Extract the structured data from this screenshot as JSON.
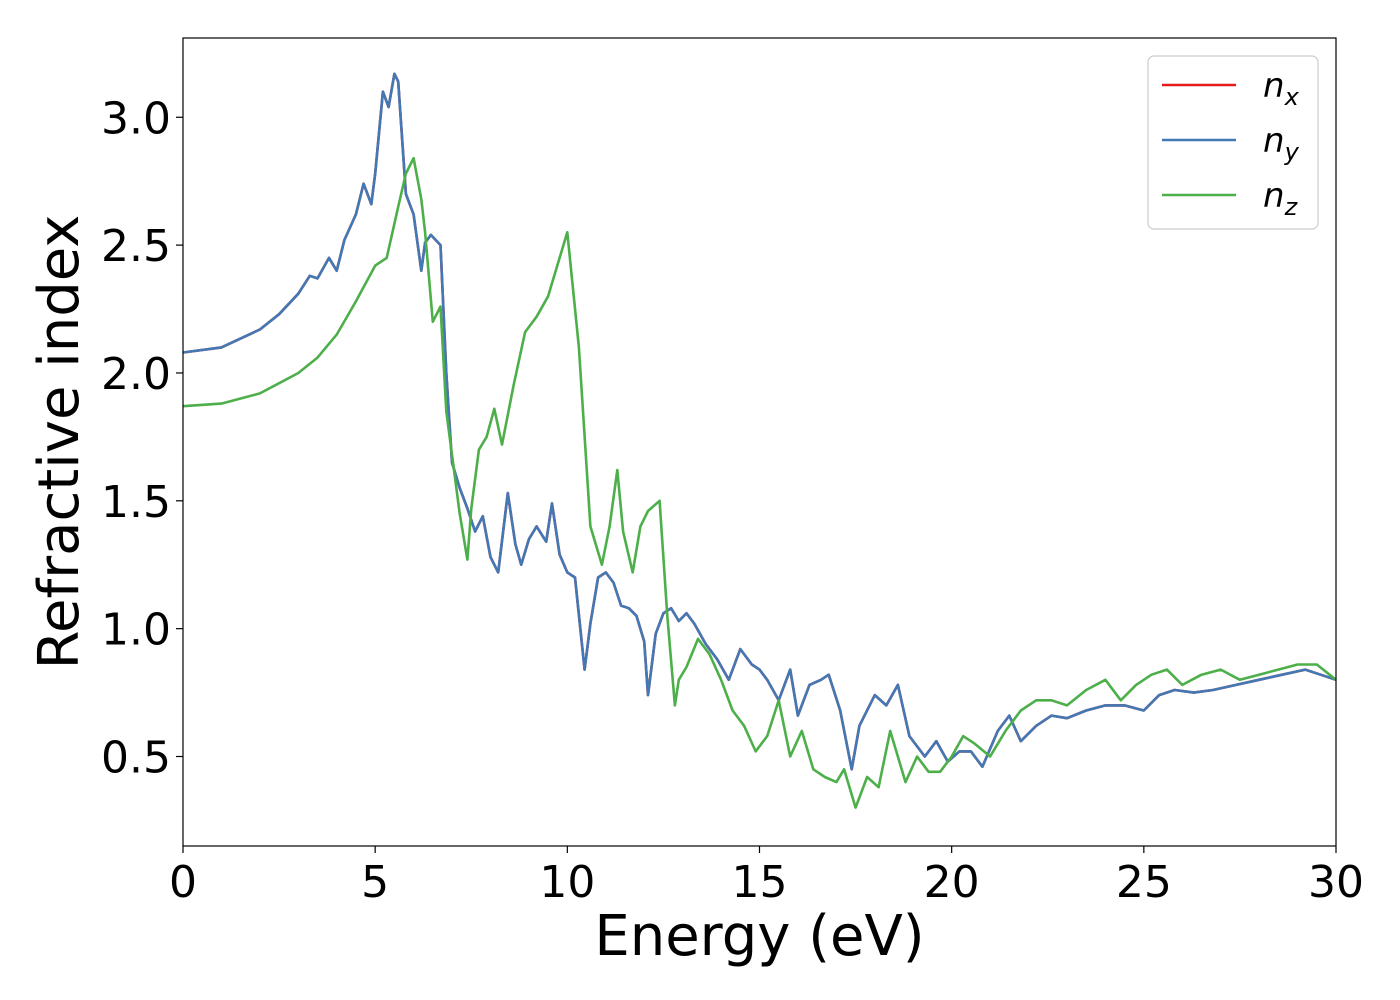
{
  "chart_data": {
    "type": "line",
    "xlabel": "Energy (eV)",
    "ylabel": "Refractive index",
    "xlim": [
      0,
      30
    ],
    "ylim": [
      0.15,
      3.31
    ],
    "xticks": [
      0,
      5,
      10,
      15,
      20,
      25,
      30
    ],
    "xtick_labels": [
      "0",
      "5",
      "10",
      "15",
      "20",
      "25",
      "30"
    ],
    "yticks": [
      0.5,
      1.0,
      1.5,
      2.0,
      2.5,
      3.0
    ],
    "ytick_labels": [
      "0.5",
      "1.0",
      "1.5",
      "2.0",
      "2.5",
      "3.0"
    ],
    "grid": false,
    "legend_position": "top-right",
    "series": [
      {
        "name": "n",
        "subscript": "x",
        "color": "#e41a1c",
        "x": [
          0,
          1,
          2,
          2.5,
          3,
          3.3,
          3.5,
          3.8,
          4.0,
          4.2,
          4.5,
          4.7,
          4.9,
          5.0,
          5.2,
          5.35,
          5.5,
          5.6,
          5.8,
          6.0,
          6.2,
          6.3,
          6.45,
          6.7,
          6.85,
          7.0,
          7.2,
          7.4,
          7.6,
          7.8,
          8.0,
          8.2,
          8.45,
          8.65,
          8.8,
          9.0,
          9.2,
          9.45,
          9.6,
          9.8,
          10.0,
          10.2,
          10.45,
          10.6,
          10.8,
          11.0,
          11.2,
          11.4,
          11.6,
          11.8,
          12.0,
          12.1,
          12.3,
          12.5,
          12.7,
          12.9,
          13.1,
          13.3,
          13.6,
          13.9,
          14.2,
          14.5,
          14.8,
          15.0,
          15.2,
          15.5,
          15.8,
          16.0,
          16.3,
          16.6,
          16.8,
          17.1,
          17.4,
          17.6,
          18.0,
          18.3,
          18.6,
          18.9,
          19.3,
          19.6,
          19.9,
          20.2,
          20.5,
          20.8,
          21.2,
          21.5,
          21.8,
          22.2,
          22.6,
          23.0,
          23.5,
          24.0,
          24.5,
          25.0,
          25.4,
          25.8,
          26.3,
          26.8,
          27.4,
          28.0,
          28.6,
          29.2,
          29.6,
          30.0
        ],
        "y": [
          2.08,
          2.1,
          2.17,
          2.23,
          2.31,
          2.38,
          2.37,
          2.45,
          2.4,
          2.52,
          2.62,
          2.74,
          2.66,
          2.78,
          3.1,
          3.04,
          3.17,
          3.14,
          2.7,
          2.62,
          2.4,
          2.51,
          2.54,
          2.5,
          2.0,
          1.65,
          1.55,
          1.47,
          1.38,
          1.44,
          1.28,
          1.22,
          1.53,
          1.33,
          1.25,
          1.35,
          1.4,
          1.34,
          1.49,
          1.29,
          1.22,
          1.2,
          0.84,
          1.02,
          1.2,
          1.22,
          1.18,
          1.09,
          1.08,
          1.05,
          0.95,
          0.74,
          0.98,
          1.06,
          1.08,
          1.03,
          1.06,
          1.02,
          0.94,
          0.88,
          0.8,
          0.92,
          0.86,
          0.84,
          0.8,
          0.72,
          0.84,
          0.66,
          0.78,
          0.8,
          0.82,
          0.68,
          0.45,
          0.62,
          0.74,
          0.7,
          0.78,
          0.58,
          0.5,
          0.56,
          0.48,
          0.52,
          0.52,
          0.46,
          0.6,
          0.66,
          0.56,
          0.62,
          0.66,
          0.65,
          0.68,
          0.7,
          0.7,
          0.68,
          0.74,
          0.76,
          0.75,
          0.76,
          0.78,
          0.8,
          0.82,
          0.84,
          0.82,
          0.8
        ]
      },
      {
        "name": "n",
        "subscript": "y",
        "color": "#4278b4",
        "x": [
          0,
          1,
          2,
          2.5,
          3,
          3.3,
          3.5,
          3.8,
          4.0,
          4.2,
          4.5,
          4.7,
          4.9,
          5.0,
          5.2,
          5.35,
          5.5,
          5.6,
          5.8,
          6.0,
          6.2,
          6.3,
          6.45,
          6.7,
          6.85,
          7.0,
          7.2,
          7.4,
          7.6,
          7.8,
          8.0,
          8.2,
          8.45,
          8.65,
          8.8,
          9.0,
          9.2,
          9.45,
          9.6,
          9.8,
          10.0,
          10.2,
          10.45,
          10.6,
          10.8,
          11.0,
          11.2,
          11.4,
          11.6,
          11.8,
          12.0,
          12.1,
          12.3,
          12.5,
          12.7,
          12.9,
          13.1,
          13.3,
          13.6,
          13.9,
          14.2,
          14.5,
          14.8,
          15.0,
          15.2,
          15.5,
          15.8,
          16.0,
          16.3,
          16.6,
          16.8,
          17.1,
          17.4,
          17.6,
          18.0,
          18.3,
          18.6,
          18.9,
          19.3,
          19.6,
          19.9,
          20.2,
          20.5,
          20.8,
          21.2,
          21.5,
          21.8,
          22.2,
          22.6,
          23.0,
          23.5,
          24.0,
          24.5,
          25.0,
          25.4,
          25.8,
          26.3,
          26.8,
          27.4,
          28.0,
          28.6,
          29.2,
          29.6,
          30.0
        ],
        "y": [
          2.08,
          2.1,
          2.17,
          2.23,
          2.31,
          2.38,
          2.37,
          2.45,
          2.4,
          2.52,
          2.62,
          2.74,
          2.66,
          2.78,
          3.1,
          3.04,
          3.17,
          3.14,
          2.7,
          2.62,
          2.4,
          2.51,
          2.54,
          2.5,
          2.0,
          1.65,
          1.55,
          1.47,
          1.38,
          1.44,
          1.28,
          1.22,
          1.53,
          1.33,
          1.25,
          1.35,
          1.4,
          1.34,
          1.49,
          1.29,
          1.22,
          1.2,
          0.84,
          1.02,
          1.2,
          1.22,
          1.18,
          1.09,
          1.08,
          1.05,
          0.95,
          0.74,
          0.98,
          1.06,
          1.08,
          1.03,
          1.06,
          1.02,
          0.94,
          0.88,
          0.8,
          0.92,
          0.86,
          0.84,
          0.8,
          0.72,
          0.84,
          0.66,
          0.78,
          0.8,
          0.82,
          0.68,
          0.45,
          0.62,
          0.74,
          0.7,
          0.78,
          0.58,
          0.5,
          0.56,
          0.48,
          0.52,
          0.52,
          0.46,
          0.6,
          0.66,
          0.56,
          0.62,
          0.66,
          0.65,
          0.68,
          0.7,
          0.7,
          0.68,
          0.74,
          0.76,
          0.75,
          0.76,
          0.78,
          0.8,
          0.82,
          0.84,
          0.82,
          0.8
        ]
      },
      {
        "name": "n",
        "subscript": "z",
        "color": "#4daf4a",
        "x": [
          0,
          1,
          2,
          3,
          3.5,
          4.0,
          4.5,
          5.0,
          5.3,
          5.6,
          5.8,
          6.0,
          6.2,
          6.3,
          6.5,
          6.7,
          6.85,
          7.0,
          7.2,
          7.4,
          7.5,
          7.7,
          7.9,
          8.1,
          8.3,
          8.6,
          8.9,
          9.2,
          9.5,
          9.8,
          10.0,
          10.3,
          10.6,
          10.9,
          11.1,
          11.3,
          11.45,
          11.7,
          11.9,
          12.1,
          12.4,
          12.6,
          12.8,
          12.9,
          13.1,
          13.4,
          13.7,
          14.0,
          14.3,
          14.6,
          14.9,
          15.2,
          15.5,
          15.8,
          16.1,
          16.4,
          16.7,
          17.0,
          17.2,
          17.5,
          17.8,
          18.1,
          18.4,
          18.8,
          19.1,
          19.4,
          19.7,
          20.0,
          20.3,
          20.6,
          21.0,
          21.4,
          21.8,
          22.2,
          22.6,
          23.0,
          23.5,
          24.0,
          24.4,
          24.8,
          25.2,
          25.6,
          26.0,
          26.5,
          27.0,
          27.5,
          28.0,
          28.5,
          29.0,
          29.5,
          30.0
        ],
        "y": [
          1.87,
          1.88,
          1.92,
          2.0,
          2.06,
          2.15,
          2.28,
          2.42,
          2.45,
          2.65,
          2.78,
          2.84,
          2.68,
          2.55,
          2.2,
          2.26,
          1.85,
          1.68,
          1.45,
          1.27,
          1.47,
          1.7,
          1.75,
          1.86,
          1.72,
          1.95,
          2.16,
          2.22,
          2.3,
          2.45,
          2.55,
          2.1,
          1.4,
          1.25,
          1.4,
          1.62,
          1.38,
          1.22,
          1.4,
          1.46,
          1.5,
          1.05,
          0.7,
          0.8,
          0.85,
          0.96,
          0.9,
          0.8,
          0.68,
          0.62,
          0.52,
          0.58,
          0.72,
          0.5,
          0.6,
          0.45,
          0.42,
          0.4,
          0.45,
          0.3,
          0.42,
          0.38,
          0.6,
          0.4,
          0.5,
          0.44,
          0.44,
          0.5,
          0.58,
          0.55,
          0.5,
          0.6,
          0.68,
          0.72,
          0.72,
          0.7,
          0.76,
          0.8,
          0.72,
          0.78,
          0.82,
          0.84,
          0.78,
          0.82,
          0.84,
          0.8,
          0.82,
          0.84,
          0.86,
          0.86,
          0.8
        ]
      }
    ]
  }
}
